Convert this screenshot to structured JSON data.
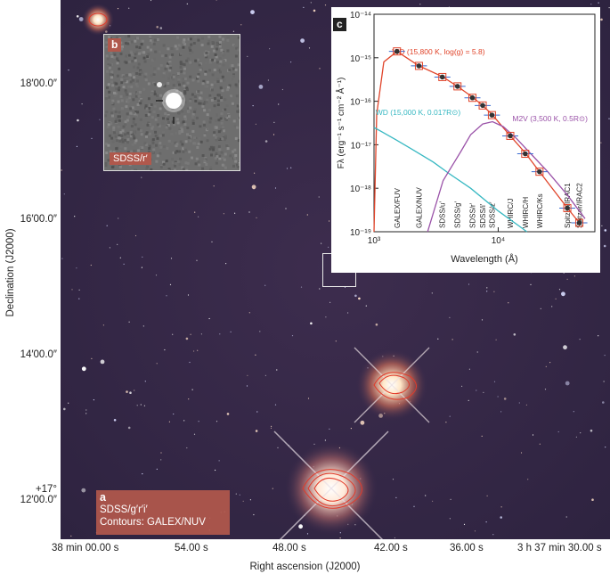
{
  "figure": {
    "dec_axis_label": "Declination (J2000)",
    "ra_axis_label": "Right ascension (J2000)",
    "dec_ticks": [
      "18′00.0″",
      "16′00.0″",
      "14′00.0″",
      "+17° 12′00.0″"
    ],
    "ra_ticks": [
      "38 min 00.00 s",
      "54.00 s",
      "48.00 s",
      "42.00 s",
      "36.00 s",
      "3 h 37 min 30.00 s"
    ]
  },
  "panel_a": {
    "letter": "a",
    "line1": "SDSS/g′r′i′",
    "line2": "Contours: GALEX/NUV"
  },
  "panel_b": {
    "letter": "b",
    "caption": "SDSS/r′"
  },
  "panel_c": {
    "letter": "c"
  },
  "chart_data": {
    "type": "scatter",
    "xlabel": "Wavelength (Å)",
    "ylabel": "Fλ (erg⁻¹ s⁻¹ cm⁻² Å⁻¹)",
    "x_scale": "log",
    "y_scale": "log",
    "xlim": [
      1000,
      60000
    ],
    "ylim": [
      1e-19,
      1e-14
    ],
    "x_ticks": [
      "10³",
      "10⁴"
    ],
    "y_ticks": [
      "10⁻¹⁴",
      "10⁻¹⁵",
      "10⁻¹⁶",
      "10⁻¹⁷",
      "10⁻¹⁸",
      "10⁻¹⁹"
    ],
    "series": [
      {
        "name": "WD (15,800 K, log(g) = 5.8)",
        "color": "#e0442a",
        "points": [
          [
            1000,
            1e-19
          ],
          [
            1050,
            5e-17
          ],
          [
            1200,
            8e-16
          ],
          [
            1530,
            1.4e-15
          ],
          [
            2300,
            6.5e-16
          ],
          [
            3550,
            3.7e-16
          ],
          [
            4700,
            2.2e-16
          ],
          [
            6200,
            1.25e-16
          ],
          [
            7500,
            8e-17
          ],
          [
            8900,
            5e-17
          ],
          [
            12500,
            1.6e-17
          ],
          [
            16500,
            6.5e-18
          ],
          [
            21500,
            2.4e-18
          ],
          [
            36000,
            3.5e-19
          ],
          [
            45000,
            1.6e-19
          ]
        ]
      },
      {
        "name": "WD (15,000 K, 0.017R⊙)",
        "color": "#37b8c2",
        "points": [
          [
            1000,
            2.5e-17
          ],
          [
            1150,
            2e-17
          ],
          [
            1500,
            1.3e-17
          ],
          [
            2000,
            8e-18
          ],
          [
            3000,
            4e-18
          ],
          [
            4000,
            2.2e-18
          ],
          [
            6000,
            1e-18
          ],
          [
            10000,
            3e-19
          ],
          [
            15000,
            1.3e-19
          ],
          [
            17000,
            1e-19
          ]
        ]
      },
      {
        "name": "M2V (3,500 K, 0.5R⊙)",
        "color": "#9a52a8",
        "points": [
          [
            2700,
            1e-19
          ],
          [
            3600,
            1.5e-18
          ],
          [
            5000,
            7e-18
          ],
          [
            6000,
            1.7e-17
          ],
          [
            7500,
            3e-17
          ],
          [
            9000,
            3.4e-17
          ],
          [
            11000,
            2.6e-17
          ],
          [
            14000,
            1.4e-17
          ],
          [
            18000,
            6.5e-18
          ],
          [
            25000,
            2.4e-18
          ],
          [
            36000,
            7e-19
          ],
          [
            50000,
            2e-19
          ]
        ]
      }
    ],
    "photometry": [
      {
        "filter": "GALEX/FUV",
        "wavelength": 1530,
        "flux": 1.4e-15
      },
      {
        "filter": "GALEX/NUV",
        "wavelength": 2300,
        "flux": 6.5e-16
      },
      {
        "filter": "SDSS/u′",
        "wavelength": 3550,
        "flux": 3.6e-16
      },
      {
        "filter": "SDSS/g′",
        "wavelength": 4700,
        "flux": 2.2e-16
      },
      {
        "filter": "SDSS/r′",
        "wavelength": 6200,
        "flux": 1.2e-16
      },
      {
        "filter": "SDSS/i′",
        "wavelength": 7500,
        "flux": 8e-17
      },
      {
        "filter": "SDSS/z′",
        "wavelength": 8900,
        "flux": 4.8e-17
      },
      {
        "filter": "WHIRC/J",
        "wavelength": 12500,
        "flux": 1.6e-17
      },
      {
        "filter": "WHIRC/H",
        "wavelength": 16500,
        "flux": 6.2e-18
      },
      {
        "filter": "WHIRC/Ks",
        "wavelength": 21500,
        "flux": 2.4e-18
      },
      {
        "filter": "Spitzer/IRAC1",
        "wavelength": 36000,
        "flux": 3.5e-19
      },
      {
        "filter": "Spitzer/IRAC2",
        "wavelength": 45000,
        "flux": 1.6e-19
      }
    ],
    "filter_labels": [
      "GALEX/FUV",
      "GALEX/NUV",
      "SDSS/u′",
      "SDSS/g′",
      "SDSS/r′",
      "SDSS/i′",
      "SDSS/z′",
      "WHIRC/J",
      "WHIRC/H",
      "WHIRC/Ks",
      "Spitzer/IRAC1",
      "Spitzer/IRAC2"
    ]
  }
}
